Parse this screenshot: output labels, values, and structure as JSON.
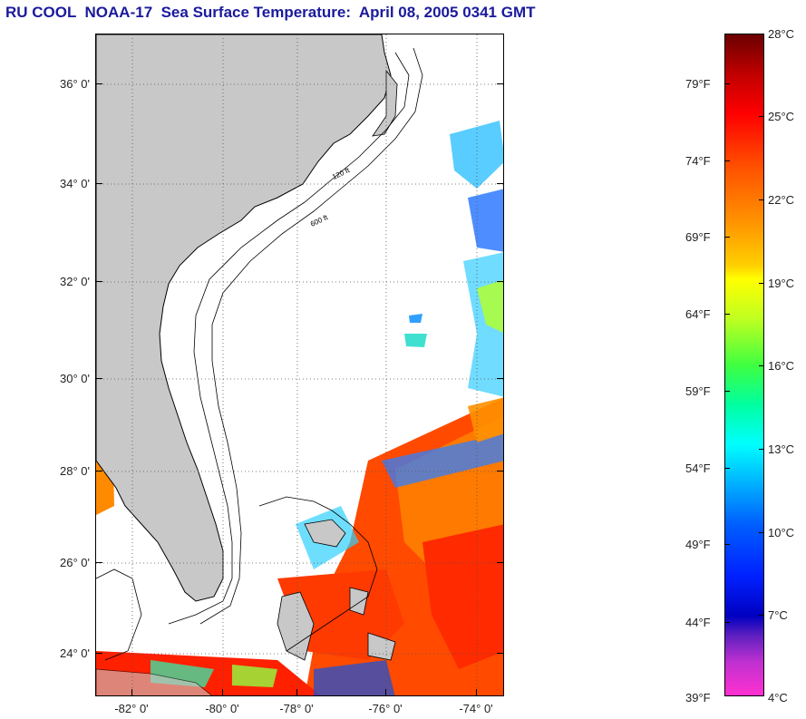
{
  "header": {
    "title": "RU COOL  NOAA-17  Sea Surface Temperature:  April 08, 2005 0341 GMT"
  },
  "map": {
    "latitude_labels": [
      "36° 0'",
      "34° 0'",
      "32° 0'",
      "30° 0'",
      "28° 0'",
      "26° 0'",
      "24° 0'"
    ],
    "longitude_labels": [
      "-82° 0'",
      "-80° 0'",
      "-78° 0'",
      "-76° 0'",
      "-74° 0'"
    ],
    "contour_labels": [
      "120 ft",
      "600 ft"
    ],
    "land_color": "#c8c8c8",
    "cloud_color": "#ffffff"
  },
  "colorbar": {
    "fahrenheit_labels": [
      "79°F",
      "74°F",
      "69°F",
      "64°F",
      "59°F",
      "54°F",
      "49°F",
      "44°F",
      "39°F"
    ],
    "celsius_labels": [
      "28°C",
      "25°C",
      "22°C",
      "19°C",
      "16°C",
      "13°C",
      "10°C",
      "7°C",
      "4°C"
    ],
    "colors": [
      "#6b0000",
      "#ff0000",
      "#ff8000",
      "#ffff00",
      "#40ff40",
      "#00ffff",
      "#0060ff",
      "#0000c0",
      "#ff30d0"
    ]
  }
}
